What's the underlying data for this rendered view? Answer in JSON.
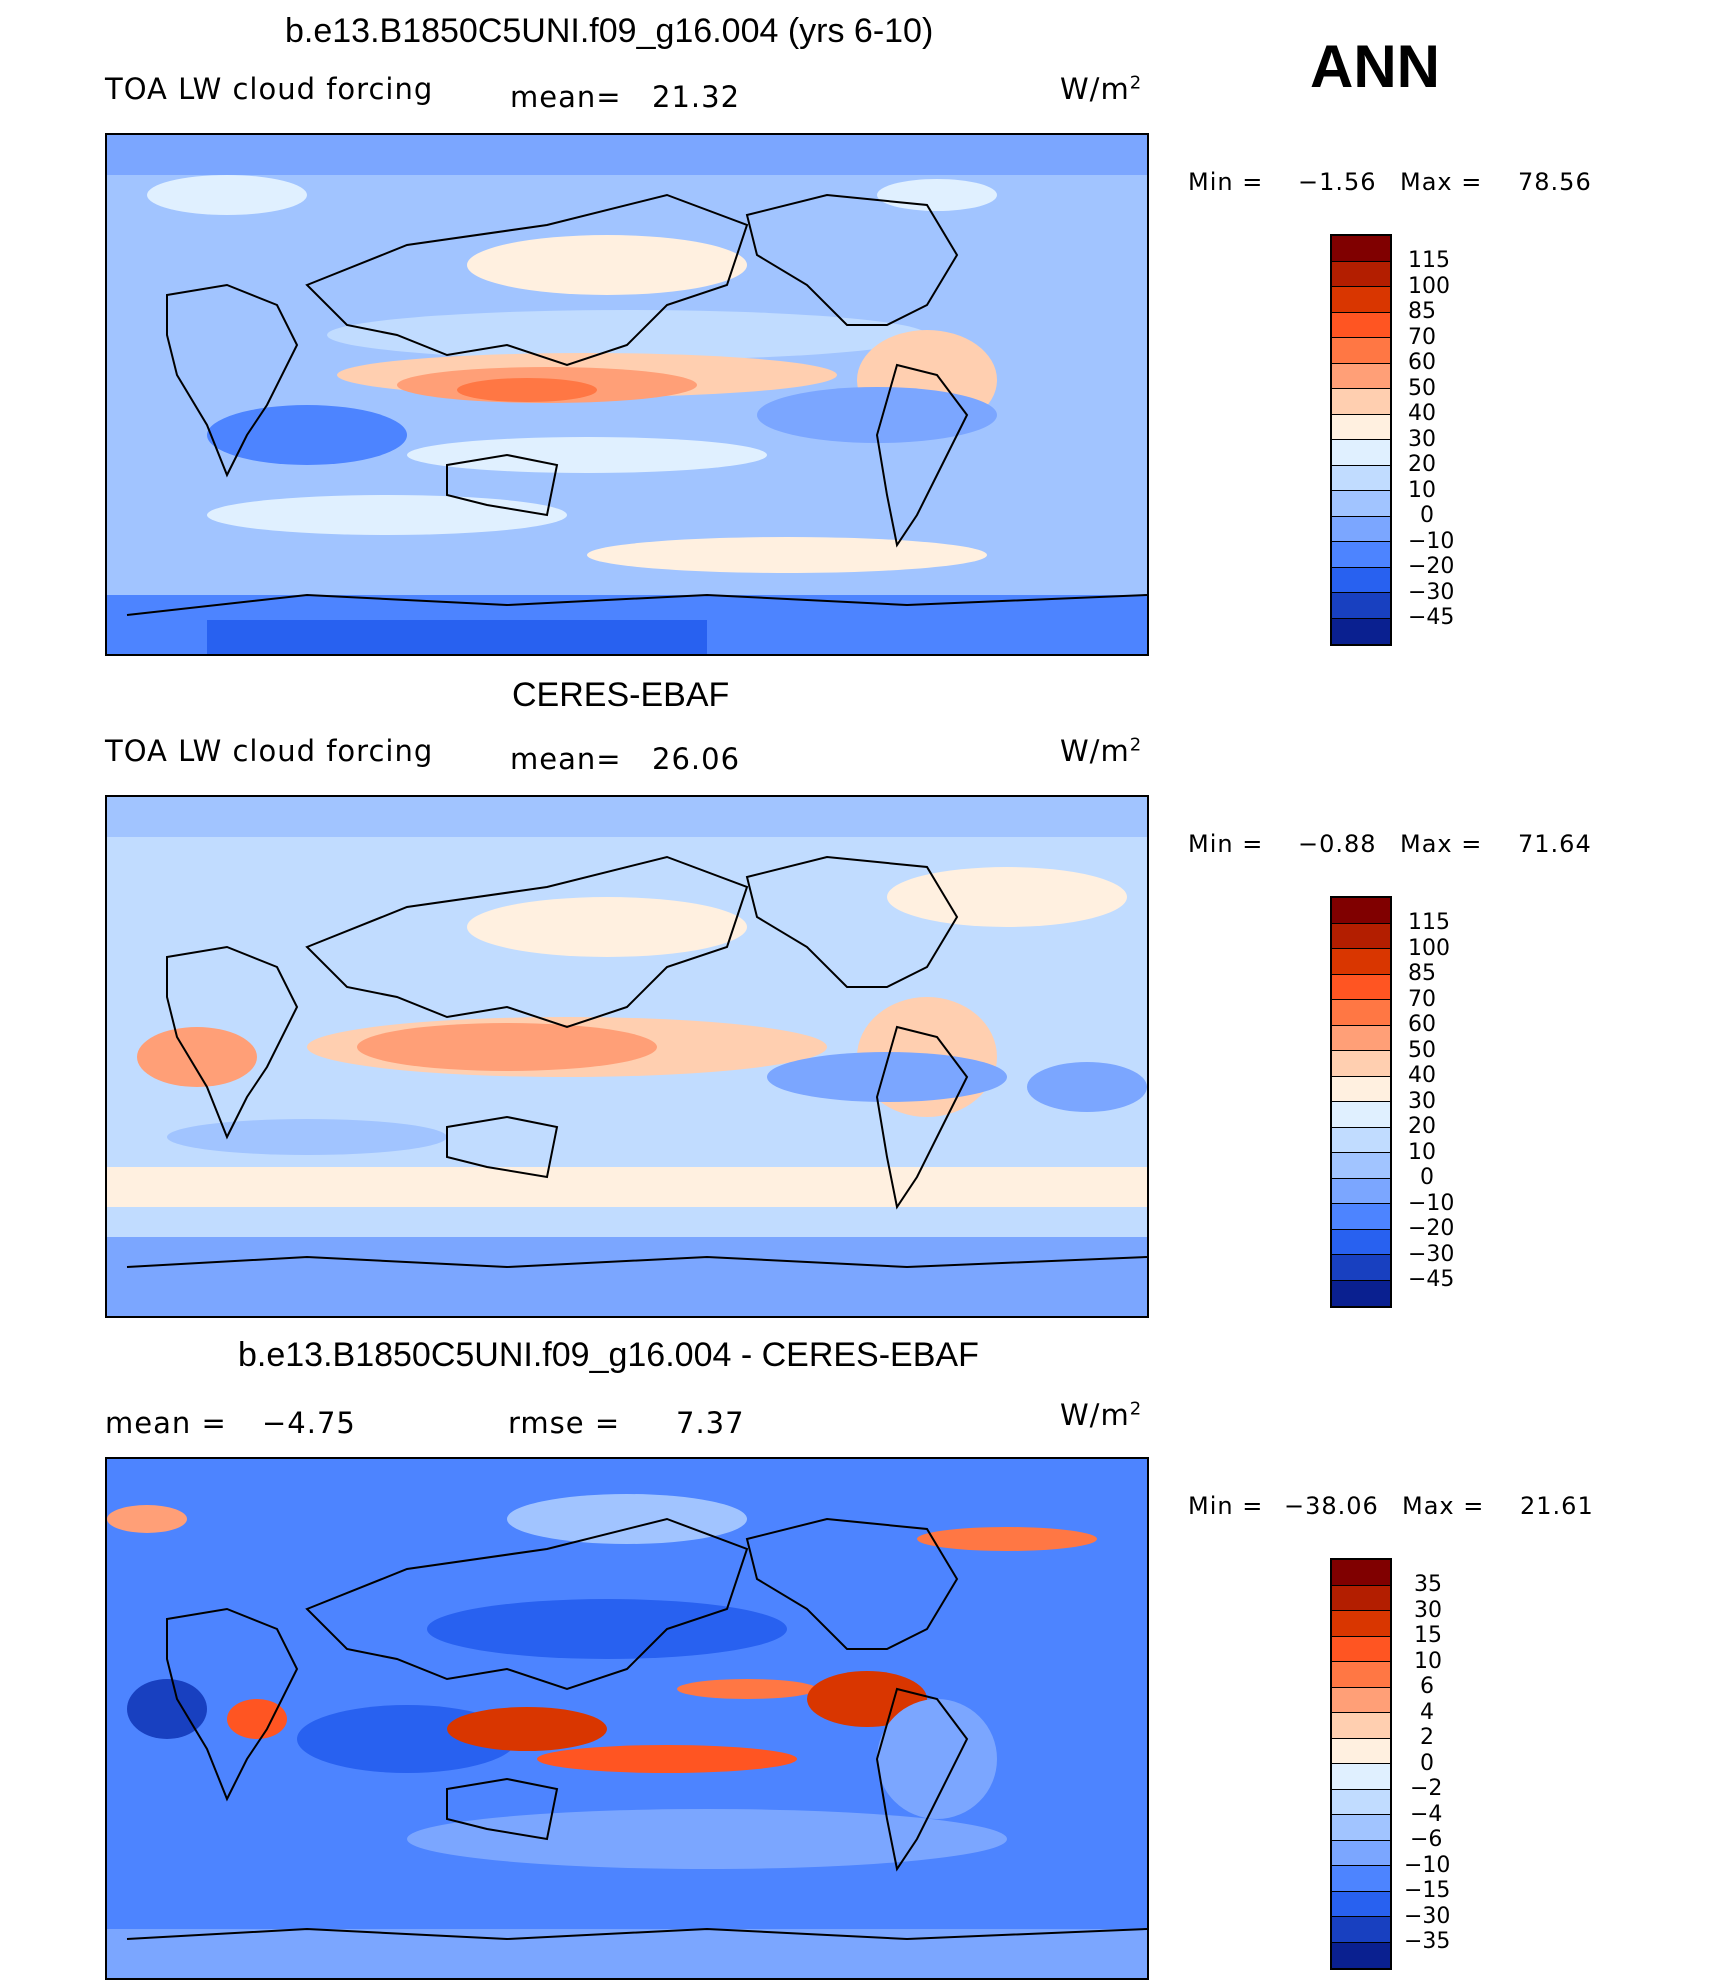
{
  "season": "ANN",
  "panels": [
    {
      "title": "b.e13.B1850C5UNI.f09_g16.004 (yrs 6-10)",
      "left_label": "TOA LW cloud forcing",
      "mean_label": "mean=",
      "mean_value": "21.32",
      "units": "W/m",
      "units_sup": "2",
      "minmax": {
        "min_label": "Min =",
        "min_value": "−1.56",
        "max_label": "Max =",
        "max_value": "78.56"
      },
      "colorbar_levels": [
        "115",
        "100",
        "85",
        "70",
        "60",
        "50",
        "40",
        "30",
        "20",
        "10",
        "0",
        "−10",
        "−20",
        "−30",
        "−45"
      ]
    },
    {
      "title": "CERES-EBAF",
      "left_label": "TOA LW cloud forcing",
      "mean_label": "mean=",
      "mean_value": "26.06",
      "units": "W/m",
      "units_sup": "2",
      "minmax": {
        "min_label": "Min =",
        "min_value": "−0.88",
        "max_label": "Max =",
        "max_value": "71.64"
      },
      "colorbar_levels": [
        "115",
        "100",
        "85",
        "70",
        "60",
        "50",
        "40",
        "30",
        "20",
        "10",
        "0",
        "−10",
        "−20",
        "−30",
        "−45"
      ]
    },
    {
      "title": "b.e13.B1850C5UNI.f09_g16.004 - CERES-EBAF",
      "left_label": "mean =",
      "left_value": "−4.75",
      "mean_label": "rmse =",
      "mean_value": "7.37",
      "units": "W/m",
      "units_sup": "2",
      "minmax": {
        "min_label": "Min =",
        "min_value": "−38.06",
        "max_label": "Max =",
        "max_value": "21.61"
      },
      "colorbar_levels": [
        "35",
        "30",
        "15",
        "10",
        "6",
        "4",
        "2",
        "0",
        "−2",
        "−4",
        "−6",
        "−10",
        "−15",
        "−30",
        "−35"
      ]
    }
  ],
  "colors": {
    "colorbar_16": [
      "#800000",
      "#b31e00",
      "#d93600",
      "#ff5522",
      "#ff7744",
      "#ff9f77",
      "#ffcfb0",
      "#fff0e0",
      "#e0f0ff",
      "#c1dcff",
      "#a1c4ff",
      "#7ba6ff",
      "#4d84ff",
      "#2861f0",
      "#1840c0",
      "#0a2090"
    ],
    "land_line": "#000000"
  }
}
